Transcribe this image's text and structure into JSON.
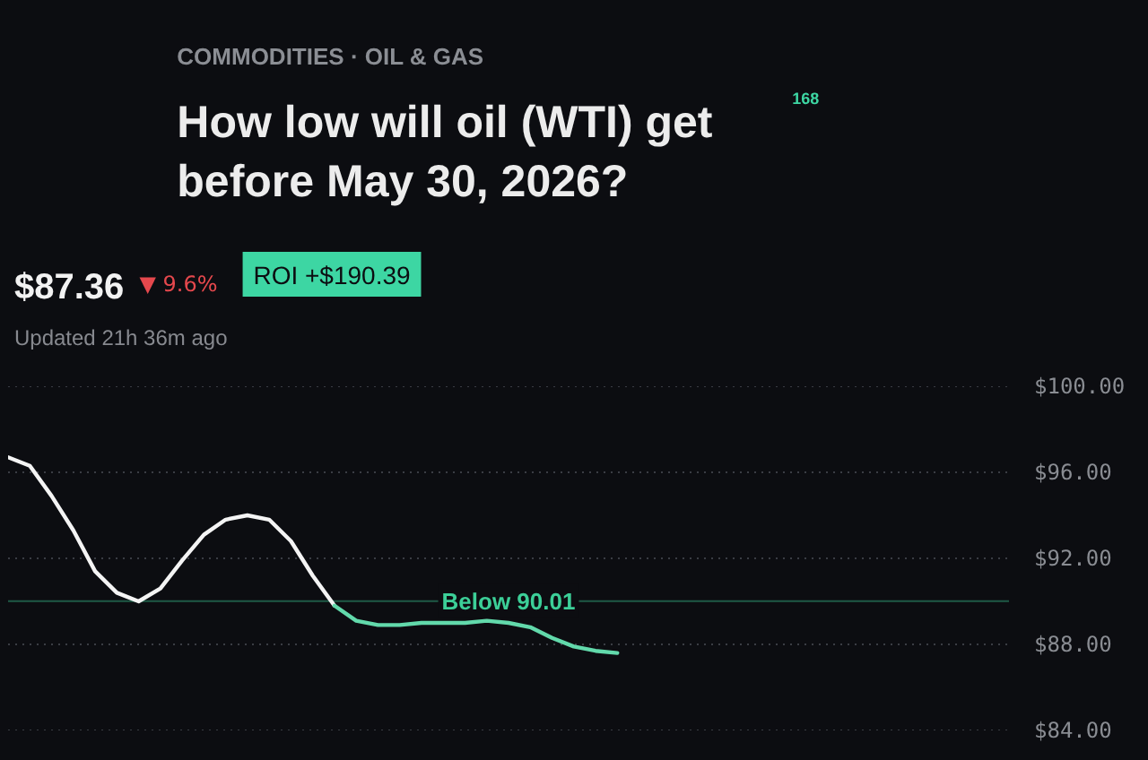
{
  "chart_data": {
    "type": "line",
    "title": "How low will oil (WTI) get before May 30, 2026?",
    "subtitle": "COMMODITIES · OIL & GAS",
    "annotations": [
      "$87.36",
      "▼ 9.6%",
      "ROI +$190.39",
      "Updated 21h 36m ago",
      "168"
    ],
    "categories": [
      null,
      null,
      null,
      null,
      null,
      null,
      null,
      null,
      null,
      null,
      null,
      null,
      null,
      null,
      null,
      null,
      null,
      null,
      null,
      null,
      null,
      null,
      null,
      null,
      null,
      null,
      null,
      null,
      null,
      null,
      null,
      null,
      null,
      null,
      null,
      null,
      null,
      null,
      null,
      null,
      null,
      null,
      null,
      null,
      null,
      null,
      null
    ],
    "series": [
      {
        "color": "#f4f4f4",
        "values": [
          96.7,
          96.3,
          94.9,
          93.3,
          91.4,
          90.4,
          90.0,
          90.6,
          91.9,
          93.1,
          93.8,
          94.0,
          93.8,
          92.8,
          91.2,
          89.8,
          null,
          null,
          null,
          null,
          null,
          null,
          null,
          null,
          null,
          null,
          null,
          null,
          null,
          null,
          null,
          null,
          null,
          null,
          null,
          null,
          null,
          null,
          null,
          null,
          null,
          null,
          null,
          null,
          null,
          null,
          null
        ]
      },
      {
        "color": "#62d9ab",
        "values": [
          null,
          null,
          null,
          null,
          null,
          null,
          null,
          null,
          null,
          null,
          null,
          null,
          null,
          null,
          null,
          89.8,
          89.1,
          88.9,
          88.9,
          89.0,
          89.0,
          89.0,
          89.1,
          89.0,
          88.8,
          88.3,
          87.9,
          87.7,
          87.6,
          null,
          null,
          null,
          null,
          null,
          null,
          null,
          null,
          null,
          null,
          null,
          null,
          null,
          null,
          null,
          null,
          null,
          null
        ]
      }
    ],
    "ylim": [
      84,
      100
    ],
    "yticks": [
      {
        "value": 84,
        "label": "$84.00"
      },
      {
        "value": 88,
        "label": "$88.00"
      },
      {
        "value": 92,
        "label": "$92.00"
      },
      {
        "value": 96,
        "label": "$96.00"
      },
      {
        "value": 100,
        "label": "$100.00"
      }
    ],
    "grid": "y",
    "tick_labels": "y",
    "ref_lines": [
      {
        "axis": "y",
        "value": 90.01,
        "label": "Below 90.01",
        "color": "#3ccf98"
      }
    ]
  }
}
